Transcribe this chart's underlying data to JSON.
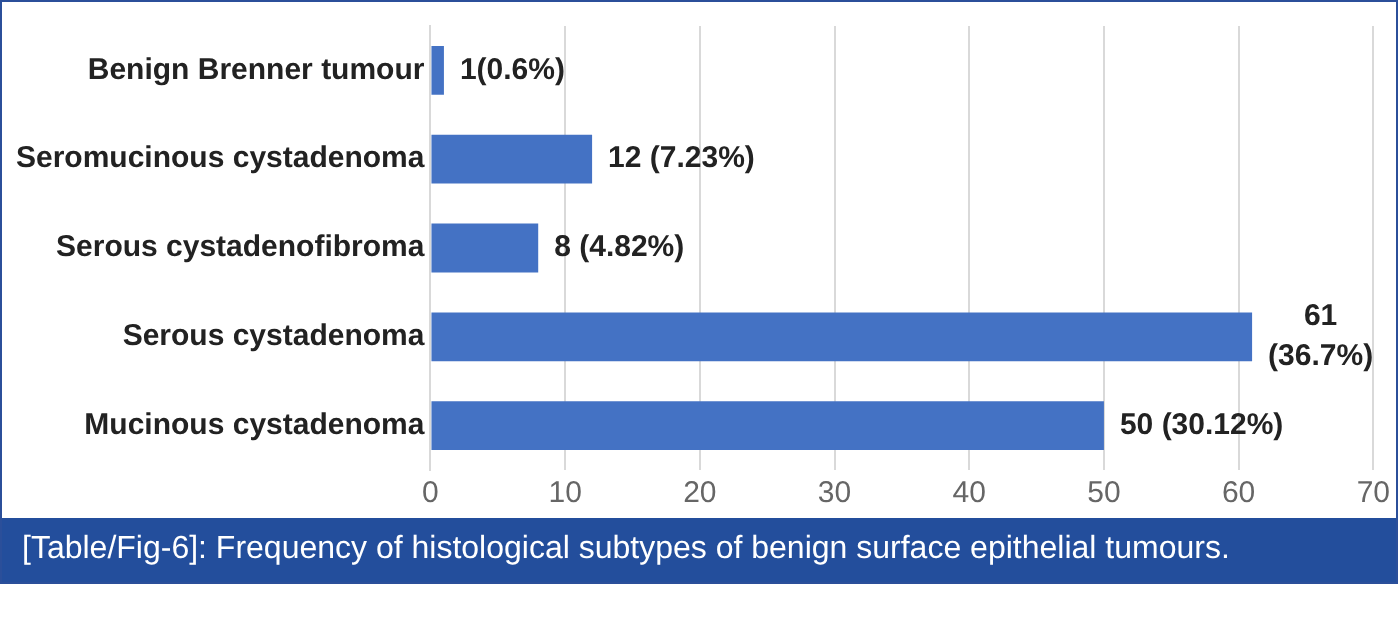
{
  "chart_data": {
    "type": "bar",
    "orientation": "horizontal",
    "categories": [
      "Benign Brenner tumour",
      "Seromucinous cystadenoma",
      "Serous cystadenofibroma",
      "Serous cystadenoma",
      "Mucinous cystadenoma"
    ],
    "values": [
      1,
      12,
      8,
      61,
      50
    ],
    "color": "#4472c4",
    "value_labels": [
      "1(0.6%)",
      "12 (7.23%)",
      "8 (4.82%)",
      "61 (36.7%)",
      "50 (30.12%)"
    ],
    "xlim": [
      0,
      70
    ],
    "xticks": [
      0,
      10,
      20,
      30,
      40,
      50,
      60,
      70
    ],
    "grid": "x",
    "legend": false,
    "annotations": [
      "[Table/Fig-6]: Frequency of histological subtypes of benign surface epithelial tumours."
    ]
  }
}
